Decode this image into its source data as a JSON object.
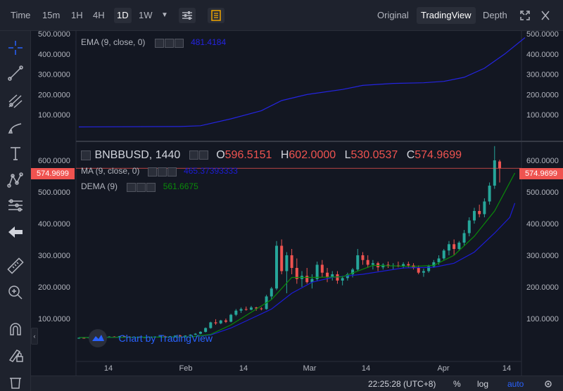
{
  "toolbar": {
    "intervals": [
      "Time",
      "15m",
      "1H",
      "4H",
      "1D",
      "1W"
    ],
    "active_interval": "1D",
    "views": [
      "Original",
      "TradingView",
      "Depth"
    ],
    "active_view": "TradingView"
  },
  "ema_pane": {
    "label": "EMA (9, close, 0)",
    "value": "481.4184",
    "price_labels": [
      "500.0000",
      "400.0000",
      "300.0000",
      "200.0000",
      "100.0000"
    ]
  },
  "main_pane": {
    "symbol": "BNBBUSD, 1440",
    "o_label": "O",
    "o_value": "596.5151",
    "h_label": "H",
    "h_value": "602.0000",
    "l_label": "L",
    "l_value": "530.0537",
    "c_label": "C",
    "c_value": "574.9699",
    "ma_label": "MA (9, close, 0)",
    "ma_value": "465.37393333",
    "dema_label": "DEMA (9)",
    "dema_value": "561.6675",
    "price_labels": [
      "600.0000",
      "500.0000",
      "400.0000",
      "300.0000",
      "200.0000",
      "100.0000"
    ],
    "last_price": "574.9699",
    "watermark": "Chart by TradingView"
  },
  "time_axis": [
    "14",
    "Feb",
    "14",
    "Mar",
    "14",
    "Apr",
    "14"
  ],
  "bottom": {
    "time": "22:25:28 (UTC+8)",
    "percent": "%",
    "log": "log",
    "auto": "auto"
  },
  "colors": {
    "up": "#26a69a",
    "down": "#ef5350",
    "ema": "#2424e0",
    "dema": "#0a8a0a",
    "ma": "#1c1cd6"
  },
  "chart_data": {
    "type": "candlestick",
    "title": "BNBBUSD, 1440",
    "ylim": [
      0,
      650
    ],
    "candles": [
      [
        38,
        40,
        36,
        39
      ],
      [
        39,
        41,
        37,
        38
      ],
      [
        38,
        42,
        37,
        41
      ],
      [
        41,
        43,
        39,
        40
      ],
      [
        40,
        41,
        38,
        39
      ],
      [
        39,
        42,
        38,
        41
      ],
      [
        41,
        44,
        40,
        43
      ],
      [
        43,
        44,
        41,
        42
      ],
      [
        42,
        45,
        41,
        44
      ],
      [
        44,
        45,
        42,
        43
      ],
      [
        43,
        44,
        40,
        41
      ],
      [
        41,
        43,
        40,
        42
      ],
      [
        42,
        43,
        39,
        40
      ],
      [
        40,
        42,
        39,
        41
      ],
      [
        41,
        43,
        40,
        42
      ],
      [
        42,
        44,
        41,
        43
      ],
      [
        43,
        45,
        42,
        44
      ],
      [
        44,
        46,
        42,
        43
      ],
      [
        43,
        45,
        41,
        44
      ],
      [
        44,
        47,
        43,
        46
      ],
      [
        46,
        48,
        44,
        45
      ],
      [
        45,
        47,
        43,
        46
      ],
      [
        46,
        50,
        45,
        49
      ],
      [
        49,
        54,
        48,
        52
      ],
      [
        52,
        60,
        50,
        58
      ],
      [
        58,
        72,
        56,
        70
      ],
      [
        70,
        90,
        68,
        88
      ],
      [
        88,
        98,
        80,
        85
      ],
      [
        85,
        96,
        82,
        94
      ],
      [
        94,
        100,
        86,
        90
      ],
      [
        90,
        115,
        88,
        112
      ],
      [
        112,
        130,
        108,
        125
      ],
      [
        125,
        135,
        118,
        130
      ],
      [
        130,
        138,
        125,
        128
      ],
      [
        128,
        140,
        126,
        135
      ],
      [
        135,
        137,
        125,
        132
      ],
      [
        132,
        136,
        126,
        130
      ],
      [
        130,
        175,
        128,
        170
      ],
      [
        170,
        200,
        160,
        195
      ],
      [
        195,
        345,
        190,
        330
      ],
      [
        330,
        350,
        240,
        250
      ],
      [
        250,
        310,
        180,
        300
      ],
      [
        300,
        320,
        240,
        260
      ],
      [
        260,
        290,
        210,
        225
      ],
      [
        225,
        250,
        200,
        235
      ],
      [
        235,
        260,
        210,
        215
      ],
      [
        215,
        240,
        195,
        225
      ],
      [
        225,
        280,
        220,
        270
      ],
      [
        270,
        285,
        230,
        245
      ],
      [
        245,
        260,
        215,
        232
      ],
      [
        232,
        250,
        220,
        240
      ],
      [
        240,
        250,
        210,
        220
      ],
      [
        220,
        235,
        205,
        228
      ],
      [
        228,
        245,
        220,
        240
      ],
      [
        240,
        260,
        230,
        255
      ],
      [
        255,
        320,
        250,
        300
      ],
      [
        300,
        310,
        270,
        285
      ],
      [
        285,
        300,
        260,
        270
      ],
      [
        270,
        285,
        255,
        275
      ],
      [
        275,
        280,
        250,
        262
      ],
      [
        262,
        275,
        255,
        270
      ],
      [
        270,
        280,
        260,
        266
      ],
      [
        266,
        275,
        255,
        268
      ],
      [
        268,
        280,
        262,
        265
      ],
      [
        265,
        278,
        258,
        272
      ],
      [
        272,
        280,
        262,
        268
      ],
      [
        268,
        275,
        255,
        260
      ],
      [
        260,
        268,
        240,
        245
      ],
      [
        245,
        258,
        232,
        250
      ],
      [
        250,
        270,
        245,
        265
      ],
      [
        265,
        285,
        260,
        278
      ],
      [
        278,
        300,
        270,
        290
      ],
      [
        290,
        320,
        285,
        315
      ],
      [
        315,
        345,
        300,
        335
      ],
      [
        335,
        350,
        300,
        320
      ],
      [
        320,
        345,
        315,
        340
      ],
      [
        340,
        380,
        330,
        370
      ],
      [
        370,
        420,
        360,
        410
      ],
      [
        410,
        450,
        400,
        440
      ],
      [
        440,
        460,
        420,
        430
      ],
      [
        430,
        480,
        420,
        470
      ],
      [
        470,
        530,
        460,
        520
      ],
      [
        520,
        645,
        510,
        600
      ],
      [
        596.5,
        602,
        530.05,
        574.97
      ]
    ],
    "ema": [
      [
        0,
        40
      ],
      [
        20,
        42
      ],
      [
        24,
        46
      ],
      [
        30,
        80
      ],
      [
        36,
        120
      ],
      [
        40,
        170
      ],
      [
        45,
        200
      ],
      [
        52,
        225
      ],
      [
        56,
        245
      ],
      [
        62,
        255
      ],
      [
        68,
        258
      ],
      [
        72,
        265
      ],
      [
        76,
        285
      ],
      [
        80,
        330
      ],
      [
        84,
        400
      ],
      [
        88,
        481
      ]
    ],
    "ma": [
      [
        0,
        40
      ],
      [
        22,
        42
      ],
      [
        26,
        48
      ],
      [
        30,
        70
      ],
      [
        34,
        100
      ],
      [
        38,
        130
      ],
      [
        42,
        180
      ],
      [
        46,
        215
      ],
      [
        50,
        230
      ],
      [
        56,
        240
      ],
      [
        64,
        260
      ],
      [
        70,
        262
      ],
      [
        74,
        275
      ],
      [
        78,
        310
      ],
      [
        82,
        370
      ],
      [
        85,
        420
      ],
      [
        86,
        465
      ]
    ],
    "dema": [
      [
        0,
        40
      ],
      [
        22,
        42
      ],
      [
        26,
        50
      ],
      [
        30,
        80
      ],
      [
        34,
        120
      ],
      [
        38,
        160
      ],
      [
        42,
        230
      ],
      [
        46,
        230
      ],
      [
        52,
        232
      ],
      [
        58,
        268
      ],
      [
        66,
        265
      ],
      [
        70,
        268
      ],
      [
        74,
        300
      ],
      [
        78,
        360
      ],
      [
        82,
        440
      ],
      [
        86,
        560
      ]
    ]
  }
}
